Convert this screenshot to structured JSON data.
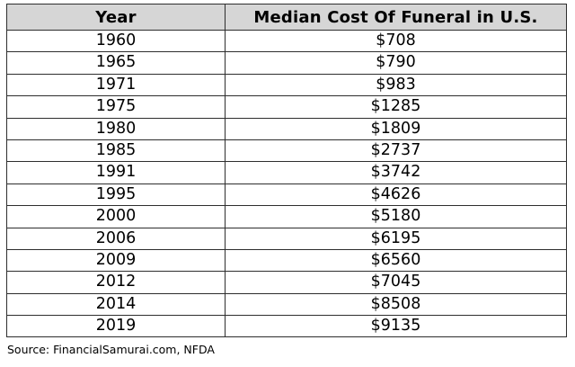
{
  "colors": {
    "header_bg": "#d6d6d6",
    "border": "#2e2e2e",
    "text": "#000000",
    "page_bg": "#ffffff"
  },
  "table": {
    "columns": [
      "Year",
      "Median Cost Of Funeral in U.S."
    ],
    "rows": [
      [
        "1960",
        "$708"
      ],
      [
        "1965",
        "$790"
      ],
      [
        "1971",
        "$983"
      ],
      [
        "1975",
        "$1285"
      ],
      [
        "1980",
        "$1809"
      ],
      [
        "1985",
        "$2737"
      ],
      [
        "1991",
        "$3742"
      ],
      [
        "1995",
        "$4626"
      ],
      [
        "2000",
        "$5180"
      ],
      [
        "2006",
        "$6195"
      ],
      [
        "2009",
        "$6560"
      ],
      [
        "2012",
        "$7045"
      ],
      [
        "2014",
        "$8508"
      ],
      [
        "2019",
        "$9135"
      ]
    ]
  },
  "source_note": "Source: FinancialSamurai.com, NFDA",
  "chart_data": {
    "type": "table",
    "title": "Median Cost Of Funeral in U.S.",
    "columns": [
      "Year",
      "Median Cost Of Funeral in U.S."
    ],
    "years": [
      1960,
      1965,
      1971,
      1975,
      1980,
      1985,
      1991,
      1995,
      2000,
      2006,
      2009,
      2012,
      2014,
      2019
    ],
    "median_cost_usd": [
      708,
      790,
      983,
      1285,
      1809,
      2737,
      3742,
      4626,
      5180,
      6195,
      6560,
      7045,
      8508,
      9135
    ],
    "source": "Source: FinancialSamurai.com, NFDA",
    "layout": "two-column table, centered text, gray header row, black grid borders"
  }
}
